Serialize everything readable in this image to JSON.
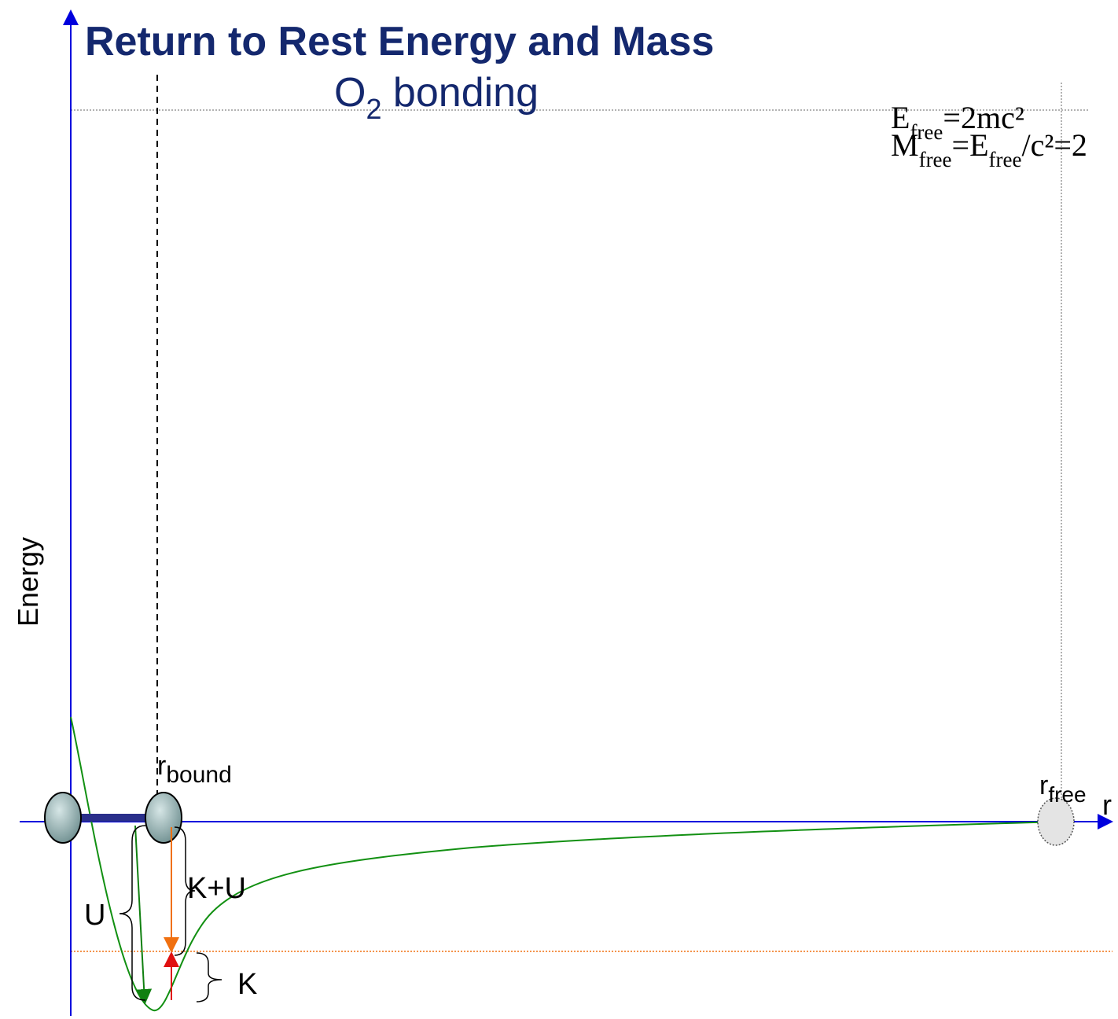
{
  "header": {
    "title": "Return to Rest Energy and Mass",
    "subtitle": {
      "main": "O",
      "sub": "2",
      "rest": " bonding"
    }
  },
  "formulas": {
    "energy": {
      "e": "E",
      "sub": "free",
      "rest": "=2mc²"
    },
    "mass": {
      "m": "M",
      "sub1": "free",
      "mid": "=E",
      "sub2": "free",
      "rest": "/c²=2"
    }
  },
  "axes": {
    "y_label": "Energy",
    "x_label": "r"
  },
  "labels": {
    "r_bound": {
      "main": "r",
      "sub": "bound"
    },
    "r_free": {
      "main": "r",
      "sub": "free"
    },
    "u": "U",
    "k_plus_u": "K+U",
    "k": "K"
  }
}
